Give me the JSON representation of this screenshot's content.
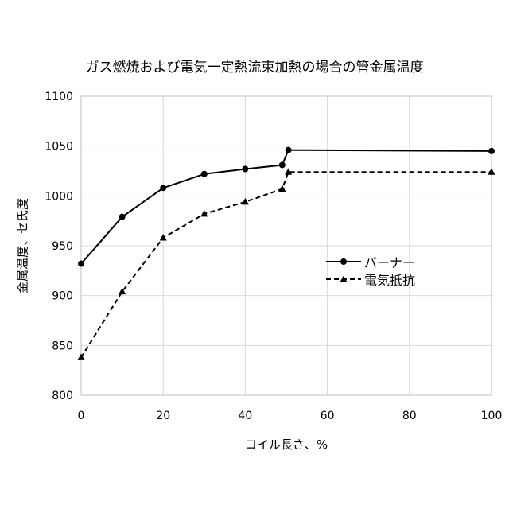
{
  "chart_data": {
    "type": "line",
    "title": "ガス燃焼および電気一定熱流束加熱の場合の管金属温度",
    "xlabel": "コイル長さ、%",
    "ylabel": "金属温度、セ氏度",
    "xlim": [
      0,
      100
    ],
    "ylim": [
      800,
      1100
    ],
    "x_ticks": [
      0,
      20,
      40,
      60,
      80,
      100
    ],
    "y_ticks": [
      800,
      850,
      900,
      950,
      1000,
      1050,
      1100
    ],
    "grid": true,
    "legend_position": "right",
    "series": [
      {
        "name": "バーナー",
        "style": "solid",
        "marker": "circle",
        "color": "#000000",
        "x": [
          0,
          10,
          20,
          30,
          40,
          49,
          50.5,
          100
        ],
        "y": [
          932,
          979,
          1008,
          1022,
          1027,
          1031,
          1046,
          1045
        ]
      },
      {
        "name": "電気抵抗",
        "style": "dashed",
        "marker": "triangle",
        "color": "#000000",
        "x": [
          0,
          10,
          20,
          30,
          40,
          49,
          50.5,
          100
        ],
        "y": [
          838,
          904,
          958,
          982,
          994,
          1007,
          1024,
          1024
        ]
      }
    ]
  }
}
